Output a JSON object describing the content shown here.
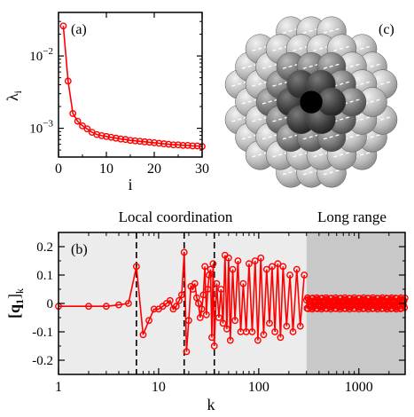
{
  "chart_data": [
    {
      "panel": "(a)",
      "type": "line",
      "xlabel": "i",
      "ylabel": "λ",
      "ylabel_sub": "i",
      "xlim": [
        0,
        30
      ],
      "ylim": [
        0.0004,
        0.04
      ],
      "yscale": "log",
      "xticks": [
        0,
        10,
        20,
        30
      ],
      "yticks": [
        {
          "value": 0.01,
          "base": "10",
          "exp": "−2"
        },
        {
          "value": 0.001,
          "base": "10",
          "exp": "−3"
        }
      ],
      "series": [
        {
          "color": "#ff0000",
          "x": [
            1,
            2,
            3,
            4,
            5,
            6,
            7,
            8,
            9,
            10,
            11,
            12,
            13,
            14,
            15,
            16,
            17,
            18,
            19,
            20,
            21,
            22,
            23,
            24,
            25,
            26,
            27,
            28,
            29,
            30
          ],
          "y": [
            0.026,
            0.0045,
            0.0016,
            0.00125,
            0.00108,
            0.00098,
            0.00088,
            0.00082,
            0.00079,
            0.00077,
            0.00075,
            0.00073,
            0.00071,
            0.0007,
            0.00068,
            0.00067,
            0.00066,
            0.00065,
            0.00064,
            0.00063,
            0.00062,
            0.00061,
            0.0006,
            0.00059,
            0.00059,
            0.00058,
            0.00058,
            0.00057,
            0.00057,
            0.00056
          ]
        }
      ]
    },
    {
      "panel": "(c)",
      "type": "other",
      "description_label": "(c)"
    },
    {
      "panel": "(b)",
      "type": "line",
      "xlabel": "k",
      "ylabel_main": "[q",
      "ylabel_sub1": "1",
      "ylabel_close": "]",
      "ylabel_sub2": "k",
      "xscale": "log",
      "xlim": [
        1,
        2900
      ],
      "ylim": [
        -0.25,
        0.25
      ],
      "xticks": [
        {
          "value": 1,
          "label": "1"
        },
        {
          "value": 10,
          "label": "10"
        },
        {
          "value": 100,
          "label": "100"
        },
        {
          "value": 1000,
          "label": "1000"
        }
      ],
      "yticks": [
        {
          "value": 0.2,
          "label": "0.2"
        },
        {
          "value": 0.1,
          "label": "0.1"
        },
        {
          "value": 0,
          "label": "0"
        },
        {
          "value": -0.1,
          "label": "-0.1"
        },
        {
          "value": -0.2,
          "label": "-0.2"
        }
      ],
      "regions": [
        {
          "x0": 1,
          "x1": 300,
          "shade": "#ececec"
        },
        {
          "x0": 300,
          "x1": 2900,
          "shade": "#c8c8c8"
        }
      ],
      "annotations": [
        {
          "text": "Local coordination"
        },
        {
          "text": "Long range"
        }
      ],
      "vlines": [
        6,
        18,
        36
      ],
      "series": [
        {
          "color": "#ff0000",
          "x": [
            1,
            2,
            3,
            4,
            5,
            6,
            7,
            8,
            9,
            10,
            11,
            12,
            13,
            14,
            15,
            16,
            17,
            18,
            19,
            20,
            21,
            22,
            23,
            24,
            25,
            26,
            27,
            28,
            29,
            30,
            31,
            32,
            33,
            34,
            35,
            36,
            38,
            40,
            42,
            44,
            46,
            48,
            50,
            52,
            55,
            58,
            62,
            66,
            70,
            75,
            80,
            86,
            92,
            98,
            105,
            112,
            120,
            128,
            136,
            145,
            155,
            165,
            175,
            190,
            205,
            220,
            240,
            260,
            285
          ],
          "y": [
            -0.01,
            -0.01,
            -0.01,
            -0.005,
            0.0,
            0.13,
            -0.11,
            -0.06,
            -0.02,
            -0.02,
            -0.01,
            0.0,
            0.01,
            -0.02,
            -0.01,
            0.01,
            0.03,
            0.18,
            -0.17,
            -0.06,
            0.06,
            0.05,
            0.07,
            0.02,
            0.0,
            -0.05,
            -0.02,
            0.03,
            0.13,
            -0.04,
            0.05,
            0.1,
            0.12,
            -0.12,
            0.14,
            -0.15,
            0.07,
            -0.05,
            0.05,
            -0.07,
            0.17,
            -0.09,
            0.16,
            -0.13,
            0.12,
            -0.06,
            0.15,
            -0.1,
            0.07,
            -0.1,
            0.14,
            -0.1,
            0.15,
            -0.13,
            0.16,
            -0.11,
            0.12,
            -0.07,
            0.13,
            -0.1,
            0.14,
            -0.12,
            0.13,
            -0.08,
            0.1,
            -0.1,
            0.12,
            -0.08,
            0.1
          ]
        }
      ]
    }
  ]
}
